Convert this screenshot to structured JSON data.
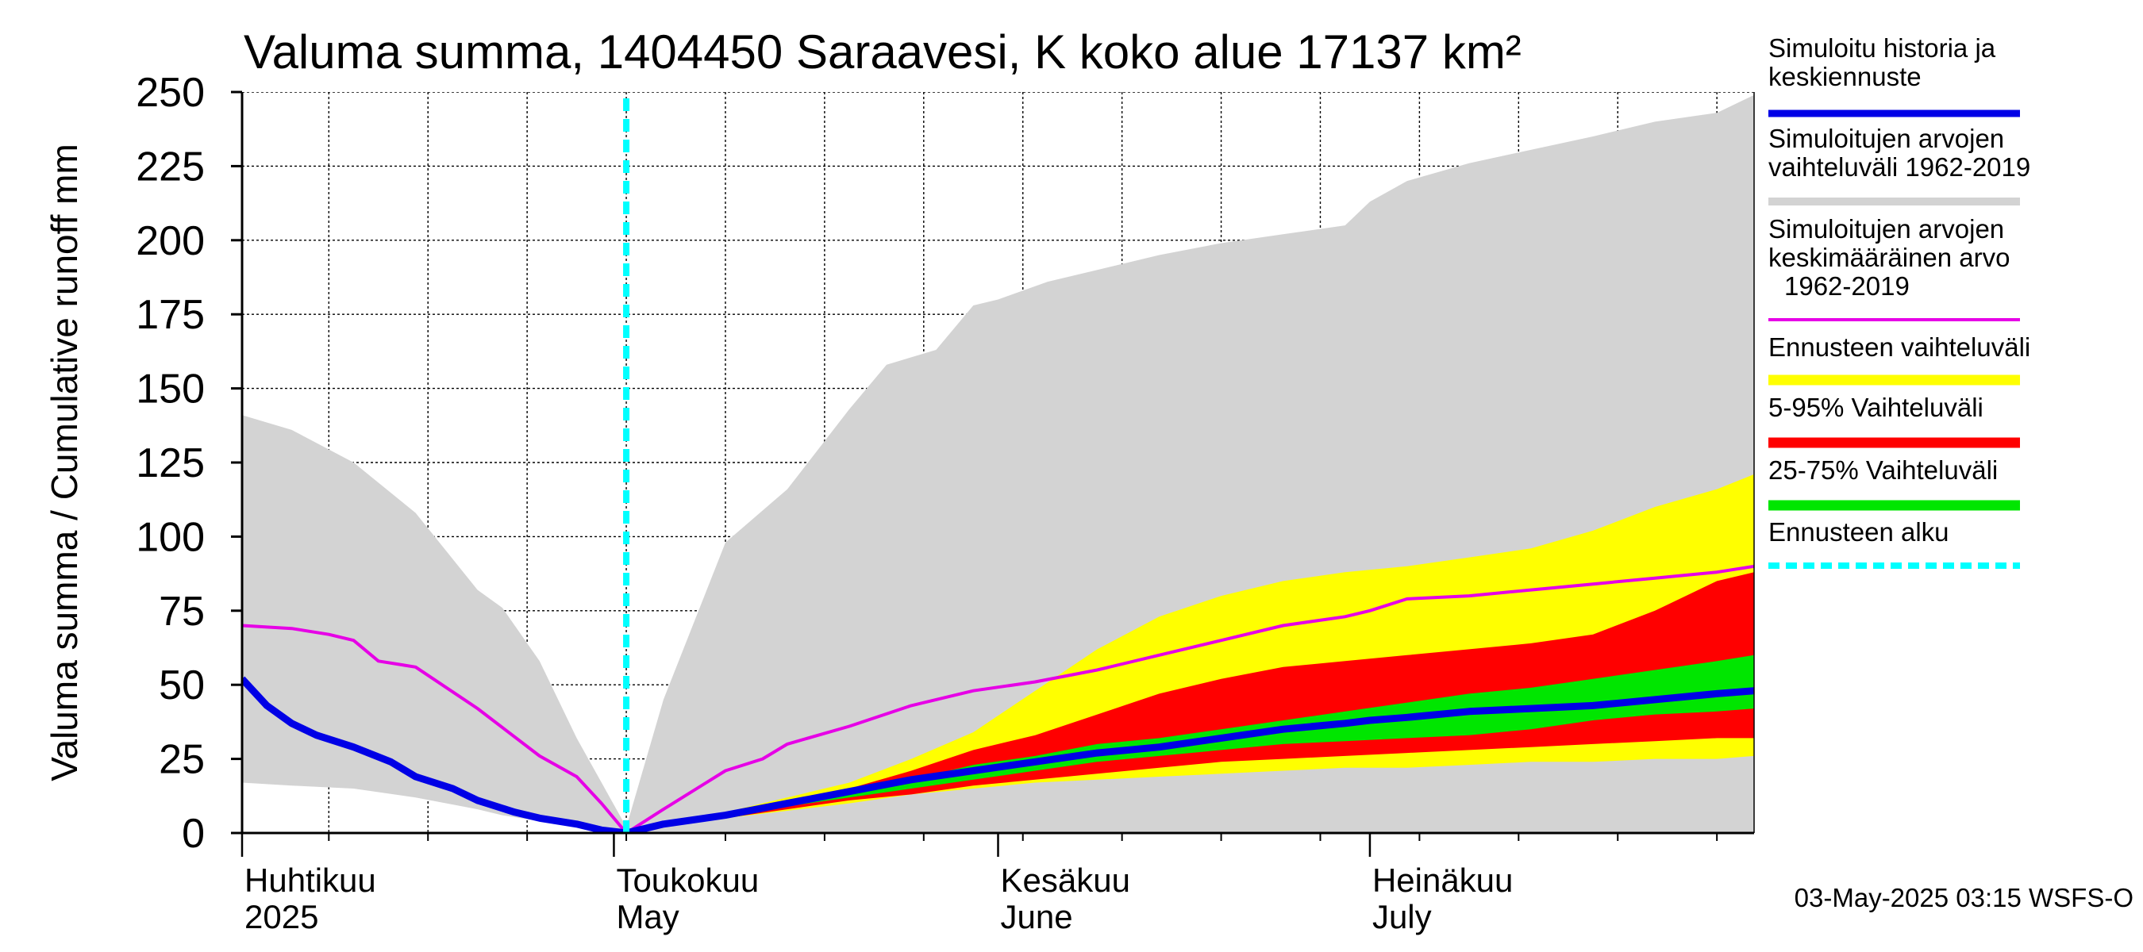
{
  "chart_data": {
    "type": "area",
    "title": "Valuma summa, 1404450 Saraavesi, K koko alue 17137 km²",
    "ylabel": "Valuma summa / Cumulative runoff    mm",
    "ylim": [
      0,
      250
    ],
    "yticks": [
      0,
      25,
      50,
      75,
      100,
      125,
      150,
      175,
      200,
      225,
      250
    ],
    "x_unit": "day of year 2025",
    "xlim": [
      91,
      213
    ],
    "months": [
      {
        "fi": "Huhtikuu",
        "en": "2025",
        "start": 91
      },
      {
        "fi": "Toukokuu",
        "en": "May",
        "start": 121
      },
      {
        "fi": "Kesäkuu",
        "en": "June",
        "start": 152
      },
      {
        "fi": "Heinäkuu",
        "en": "July",
        "start": 182
      }
    ],
    "forecast_start": 122,
    "grid": true,
    "legend_placement": "right",
    "legend": [
      {
        "label": "Simuloitu historia ja keskiennuste",
        "color": "#0000e6"
      },
      {
        "label": "Simuloitujen arvojen vaihteluväli 1962-2019",
        "color": "#d3d3d3"
      },
      {
        "label": "Simuloitujen arvojen keskimääräinen arvo 1962-2019",
        "color": "#e600e6"
      },
      {
        "label": "Ennusteen vaihteluväli",
        "color": "#ffff00"
      },
      {
        "label": "5-95% Vaihteluväli",
        "color": "#ff0000"
      },
      {
        "label": "25-75% Vaihteluväli",
        "color": "#00e600"
      },
      {
        "label": "Ennusteen alku",
        "color": "#00ffff"
      }
    ],
    "series": [
      {
        "name": "Simuloitujen arvojen vaihteluväli 1962-2019",
        "type": "band",
        "color": "#d3d3d3",
        "x": [
          91,
          95,
          100,
          105,
          110,
          112,
          115,
          118,
          122,
          125,
          130,
          135,
          140,
          143,
          147,
          150,
          152,
          156,
          160,
          165,
          170,
          175,
          180,
          182,
          185,
          190,
          200,
          205,
          210,
          213
        ],
        "lower": [
          17,
          16,
          15,
          12,
          8,
          6,
          4,
          2,
          0,
          0,
          0,
          0,
          0,
          0,
          0,
          0,
          0,
          0,
          0,
          0,
          0,
          0,
          0,
          0,
          0,
          0,
          0,
          0,
          0,
          0
        ],
        "upper": [
          141,
          136,
          125,
          108,
          82,
          76,
          58,
          32,
          2,
          45,
          98,
          116,
          143,
          158,
          163,
          178,
          180,
          186,
          190,
          195,
          199,
          202,
          205,
          213,
          220,
          226,
          235,
          240,
          243,
          249
        ]
      },
      {
        "name": "Ennusteen vaihteluväli",
        "type": "band",
        "color": "#ffff00",
        "x": [
          122,
          130,
          140,
          145,
          150,
          155,
          160,
          165,
          170,
          175,
          180,
          185,
          190,
          195,
          200,
          205,
          210,
          213
        ],
        "lower": [
          0,
          5,
          10,
          13,
          15,
          17,
          18,
          19,
          20,
          21,
          22,
          22,
          23,
          24,
          24,
          25,
          25,
          26
        ],
        "upper": [
          0,
          7,
          17,
          25,
          34,
          48,
          62,
          73,
          80,
          85,
          88,
          90,
          93,
          96,
          102,
          110,
          116,
          121
        ]
      },
      {
        "name": "5-95% Vaihteluväli",
        "type": "band",
        "color": "#ff0000",
        "x": [
          122,
          130,
          140,
          145,
          150,
          155,
          160,
          165,
          170,
          175,
          180,
          185,
          190,
          195,
          200,
          205,
          210,
          213
        ],
        "lower": [
          0,
          5,
          11,
          13,
          16,
          18,
          20,
          22,
          24,
          25,
          26,
          27,
          28,
          29,
          30,
          31,
          32,
          32
        ],
        "upper": [
          0,
          7,
          15,
          21,
          28,
          33,
          40,
          47,
          52,
          56,
          58,
          60,
          62,
          64,
          67,
          75,
          85,
          88
        ]
      },
      {
        "name": "25-75% Vaihteluväli",
        "type": "band",
        "color": "#00e600",
        "x": [
          122,
          130,
          140,
          145,
          150,
          155,
          160,
          165,
          170,
          175,
          180,
          185,
          190,
          195,
          200,
          205,
          210,
          213
        ],
        "lower": [
          0,
          6,
          12,
          15,
          18,
          21,
          24,
          26,
          28,
          30,
          31,
          32,
          33,
          35,
          38,
          40,
          41,
          42
        ],
        "upper": [
          0,
          7,
          13,
          18,
          23,
          26,
          30,
          32,
          35,
          38,
          41,
          44,
          47,
          49,
          52,
          55,
          58,
          60
        ]
      },
      {
        "name": "Simuloitujen arvojen keskimääräinen arvo 1962-2019",
        "type": "line",
        "color": "#e600e6",
        "x": [
          91,
          95,
          98,
          100,
          102,
          105,
          110,
          115,
          118,
          120,
          122,
          125,
          130,
          133,
          135,
          140,
          145,
          150,
          155,
          160,
          165,
          170,
          175,
          180,
          182,
          185,
          190,
          195,
          200,
          205,
          210,
          213
        ],
        "values": [
          70,
          69,
          67,
          65,
          58,
          56,
          42,
          26,
          19,
          10,
          0,
          8,
          21,
          25,
          30,
          36,
          43,
          48,
          51,
          55,
          60,
          65,
          70,
          73,
          75,
          79,
          80,
          82,
          84,
          86,
          88,
          90
        ]
      },
      {
        "name": "Simuloitu historia ja keskiennuste",
        "type": "line",
        "color": "#0000e6",
        "x": [
          91,
          93,
          95,
          97,
          100,
          103,
          105,
          108,
          110,
          113,
          115,
          118,
          120,
          122,
          125,
          130,
          135,
          140,
          145,
          150,
          155,
          160,
          165,
          170,
          175,
          180,
          182,
          185,
          190,
          195,
          200,
          205,
          210,
          213
        ],
        "values": [
          52,
          43,
          37,
          33,
          29,
          24,
          19,
          15,
          11,
          7,
          5,
          3,
          1,
          0,
          3,
          6,
          10,
          14,
          18,
          21,
          24,
          27,
          29,
          32,
          35,
          37,
          38,
          39,
          41,
          42,
          43,
          45,
          47,
          48
        ]
      }
    ]
  },
  "footer": {
    "timestamp": "03-May-2025 03:15 WSFS-O"
  }
}
